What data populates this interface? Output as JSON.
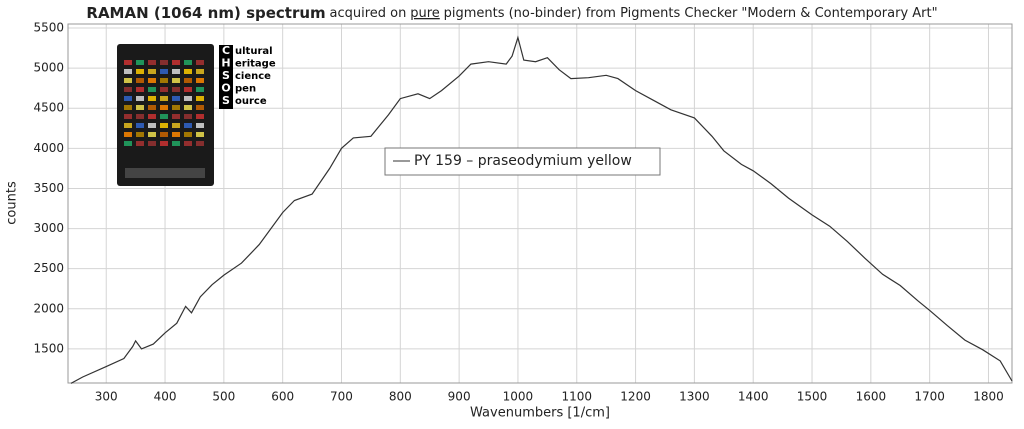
{
  "chart_data": {
    "type": "line",
    "title_bold": "RAMAN (1064 nm) spectrum",
    "title_pre": "acquired on",
    "title_underlined": "pure",
    "title_post": "pigments (no-binder) from Pigments Checker \"Modern & Contemporary Art\"",
    "xlabel": "Wavenumbers [1/cm]",
    "ylabel": "counts",
    "xlim": [
      235,
      1840
    ],
    "ylim": [
      1075,
      5550
    ],
    "xticks": [
      300,
      400,
      500,
      600,
      700,
      800,
      900,
      1000,
      1100,
      1200,
      1300,
      1400,
      1500,
      1600,
      1700,
      1800
    ],
    "yticks": [
      1500,
      2000,
      2500,
      3000,
      3500,
      4000,
      4500,
      5000,
      5500
    ],
    "grid": true,
    "legend": "top-center",
    "x": [
      240,
      260,
      300,
      330,
      345,
      350,
      360,
      380,
      400,
      420,
      435,
      445,
      460,
      480,
      500,
      530,
      560,
      600,
      620,
      650,
      680,
      700,
      720,
      750,
      780,
      800,
      830,
      850,
      870,
      900,
      920,
      950,
      980,
      990,
      1000,
      1010,
      1030,
      1050,
      1070,
      1090,
      1120,
      1150,
      1170,
      1200,
      1230,
      1260,
      1300,
      1330,
      1350,
      1380,
      1400,
      1430,
      1460,
      1500,
      1530,
      1560,
      1590,
      1620,
      1650,
      1680,
      1700,
      1730,
      1760,
      1790,
      1820,
      1840
    ],
    "series": [
      {
        "name": "PY 159 – praseodymium yellow",
        "color": "#333333",
        "values": [
          1070,
          1150,
          1280,
          1380,
          1530,
          1600,
          1500,
          1560,
          1700,
          1820,
          2030,
          1950,
          2150,
          2300,
          2420,
          2570,
          2800,
          3200,
          3350,
          3430,
          3750,
          4000,
          4130,
          4150,
          4420,
          4620,
          4680,
          4620,
          4720,
          4900,
          5050,
          5080,
          5050,
          5150,
          5380,
          5100,
          5080,
          5130,
          4980,
          4870,
          4880,
          4910,
          4870,
          4720,
          4600,
          4480,
          4380,
          4150,
          3970,
          3800,
          3720,
          3560,
          3380,
          3170,
          3030,
          2840,
          2630,
          2430,
          2290,
          2100,
          1980,
          1790,
          1610,
          1490,
          1350,
          1100
        ]
      }
    ]
  },
  "logo": {
    "letters": [
      "C",
      "H",
      "S",
      "O",
      "S"
    ],
    "words": [
      "ultural",
      "eritage",
      "cience",
      "pen",
      "ource"
    ]
  }
}
